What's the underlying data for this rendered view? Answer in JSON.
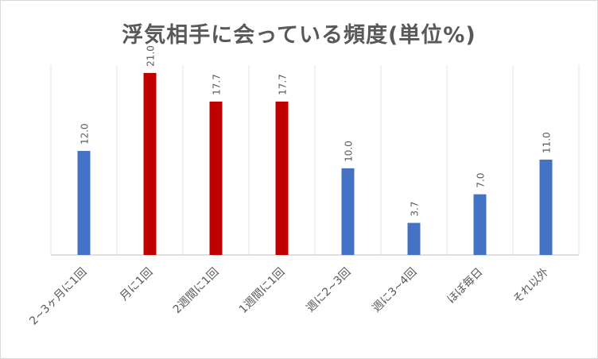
{
  "chart_data": {
    "type": "bar",
    "title": "浮気相手に会っている頻度(単位%)",
    "categories": [
      "2~3ヶ月に1回",
      "月に1回",
      "2週間に1回",
      "1週間に1回",
      "週に2~3回",
      "週に3~4回",
      "ほぼ毎日",
      "それ以外"
    ],
    "values": [
      12.0,
      21.0,
      17.7,
      17.7,
      10.0,
      3.7,
      7.0,
      11.0
    ],
    "value_labels": [
      "12.0",
      "21.0",
      "17.7",
      "17.7",
      "10.0",
      "3.7",
      "7.0",
      "11.0"
    ],
    "bar_colors": [
      "#4472c4",
      "#c00000",
      "#c00000",
      "#c00000",
      "#4472c4",
      "#4472c4",
      "#4472c4",
      "#4472c4"
    ],
    "ylim": [
      0,
      23
    ],
    "grid": true,
    "legend": "none"
  }
}
